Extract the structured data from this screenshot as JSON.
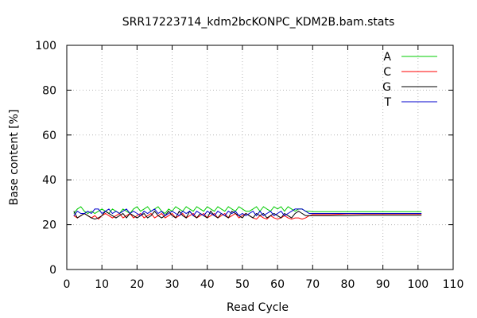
{
  "chart_data": {
    "type": "line",
    "title": "SRR17223714_kdm2bcKONPC_KDM2B.bam.stats",
    "xlabel": "Read Cycle",
    "ylabel": "Base content [%]",
    "xlim": [
      0,
      110
    ],
    "ylim": [
      0,
      100
    ],
    "xticks": [
      0,
      10,
      20,
      30,
      40,
      50,
      60,
      70,
      80,
      90,
      100,
      110
    ],
    "yticks": [
      0,
      20,
      40,
      60,
      80,
      100
    ],
    "grid": true,
    "legend_position": "top-right",
    "series": [
      {
        "name": "A",
        "color": "#00cc00",
        "x": [
          2,
          3,
          4,
          5,
          6,
          7,
          8,
          9,
          10,
          11,
          12,
          13,
          14,
          15,
          16,
          17,
          18,
          19,
          20,
          21,
          22,
          23,
          24,
          25,
          26,
          27,
          28,
          29,
          30,
          31,
          32,
          33,
          34,
          35,
          36,
          37,
          38,
          39,
          40,
          41,
          42,
          43,
          44,
          45,
          46,
          47,
          48,
          49,
          50,
          51,
          52,
          53,
          54,
          55,
          56,
          57,
          58,
          59,
          60,
          61,
          62,
          63,
          64,
          65,
          66,
          67,
          68,
          69,
          70,
          75,
          80,
          85,
          90,
          95,
          100,
          101
        ],
        "y": [
          25,
          27,
          28,
          26,
          25,
          26,
          25,
          26,
          27,
          26,
          25,
          27,
          26,
          25,
          27,
          26,
          25,
          27,
          28,
          26,
          27,
          28,
          26,
          27,
          28,
          26,
          25,
          27,
          26,
          28,
          27,
          26,
          28,
          27,
          26,
          28,
          27,
          26,
          28,
          27,
          26,
          28,
          27,
          26,
          28,
          27,
          26,
          28,
          27,
          26,
          26,
          27,
          28,
          26,
          28,
          27,
          26,
          28,
          27,
          28,
          26,
          28,
          27,
          26,
          27,
          27,
          26,
          26,
          25.8,
          25.8,
          25.8,
          25.8,
          25.8,
          25.8,
          25.8,
          25.8
        ]
      },
      {
        "name": "C",
        "color": "#ff0000",
        "x": [
          2,
          3,
          4,
          5,
          6,
          7,
          8,
          9,
          10,
          11,
          12,
          13,
          14,
          15,
          16,
          17,
          18,
          19,
          20,
          21,
          22,
          23,
          24,
          25,
          26,
          27,
          28,
          29,
          30,
          31,
          32,
          33,
          34,
          35,
          36,
          37,
          38,
          39,
          40,
          41,
          42,
          43,
          44,
          45,
          46,
          47,
          48,
          49,
          50,
          51,
          52,
          53,
          54,
          55,
          56,
          57,
          58,
          59,
          60,
          61,
          62,
          63,
          64,
          65,
          66,
          67,
          68,
          69,
          70,
          75,
          80,
          85,
          90,
          95,
          100,
          101
        ],
        "y": [
          24,
          23,
          24,
          25,
          24,
          23,
          24,
          22.5,
          24,
          25,
          24,
          23,
          24,
          25,
          23,
          24,
          25,
          23,
          24,
          25,
          23,
          24,
          25,
          23,
          24,
          25,
          23,
          24,
          25,
          23,
          24,
          25,
          23,
          24,
          25,
          23,
          24,
          25,
          23,
          24,
          25,
          23,
          24,
          25,
          23,
          24,
          25,
          23,
          24,
          25,
          24,
          23,
          22.5,
          24,
          23,
          22.5,
          24,
          23,
          22.5,
          23,
          24,
          23,
          22.5,
          23,
          23,
          22.5,
          23,
          24,
          24.5,
          24.5,
          24.8,
          24.8,
          24.8,
          24.8,
          24.8,
          24.8
        ]
      },
      {
        "name": "G",
        "color": "#000000",
        "x": [
          2,
          3,
          4,
          5,
          6,
          7,
          8,
          9,
          10,
          11,
          12,
          13,
          14,
          15,
          16,
          17,
          18,
          19,
          20,
          21,
          22,
          23,
          24,
          25,
          26,
          27,
          28,
          29,
          30,
          31,
          32,
          33,
          34,
          35,
          36,
          37,
          38,
          39,
          40,
          41,
          42,
          43,
          44,
          45,
          46,
          47,
          48,
          49,
          50,
          51,
          52,
          53,
          54,
          55,
          56,
          57,
          58,
          59,
          60,
          61,
          62,
          63,
          64,
          65,
          66,
          67,
          68,
          69,
          70,
          75,
          80,
          85,
          90,
          95,
          100,
          101
        ],
        "y": [
          26,
          23,
          24,
          25,
          24,
          23,
          22.5,
          23,
          24,
          26,
          25,
          24,
          23,
          24,
          25,
          23,
          25,
          24,
          23,
          24,
          25,
          23,
          24,
          26,
          24,
          23,
          24,
          26,
          24,
          23,
          26,
          24,
          23,
          26,
          24,
          23,
          25,
          24,
          23,
          26,
          24,
          23,
          25,
          24,
          23,
          26,
          25,
          24,
          23,
          25,
          24,
          23,
          25,
          24,
          25,
          23,
          24,
          25,
          24,
          23,
          25,
          24,
          23,
          25,
          26,
          25,
          24,
          24,
          24,
          24,
          24,
          24.2,
          24.2,
          24.2,
          24.2,
          24.2
        ]
      },
      {
        "name": "T",
        "color": "#0000cc",
        "x": [
          2,
          3,
          4,
          5,
          6,
          7,
          8,
          9,
          10,
          11,
          12,
          13,
          14,
          15,
          16,
          17,
          18,
          19,
          20,
          21,
          22,
          23,
          24,
          25,
          26,
          27,
          28,
          29,
          30,
          31,
          32,
          33,
          34,
          35,
          36,
          37,
          38,
          39,
          40,
          41,
          42,
          43,
          44,
          45,
          46,
          47,
          48,
          49,
          50,
          51,
          52,
          53,
          54,
          55,
          56,
          57,
          58,
          59,
          60,
          61,
          62,
          63,
          64,
          65,
          66,
          67,
          68,
          69,
          70,
          75,
          80,
          85,
          90,
          95,
          100,
          101
        ],
        "y": [
          24,
          26,
          25,
          25,
          26,
          25,
          27,
          27,
          25,
          26,
          27,
          25,
          26,
          25,
          26,
          27,
          25,
          26,
          25,
          24,
          26,
          25,
          26,
          27,
          25,
          26,
          24,
          25,
          26,
          25,
          24,
          26,
          25,
          26,
          24,
          26,
          25,
          24,
          26,
          25,
          24,
          26,
          25,
          24,
          26,
          25,
          26,
          24,
          25,
          24,
          25,
          26,
          24,
          26,
          24,
          25,
          26,
          24,
          25,
          26,
          24,
          25,
          26,
          27,
          27,
          27,
          26,
          25,
          25,
          25,
          25,
          25,
          25,
          25,
          25,
          25
        ]
      }
    ]
  }
}
